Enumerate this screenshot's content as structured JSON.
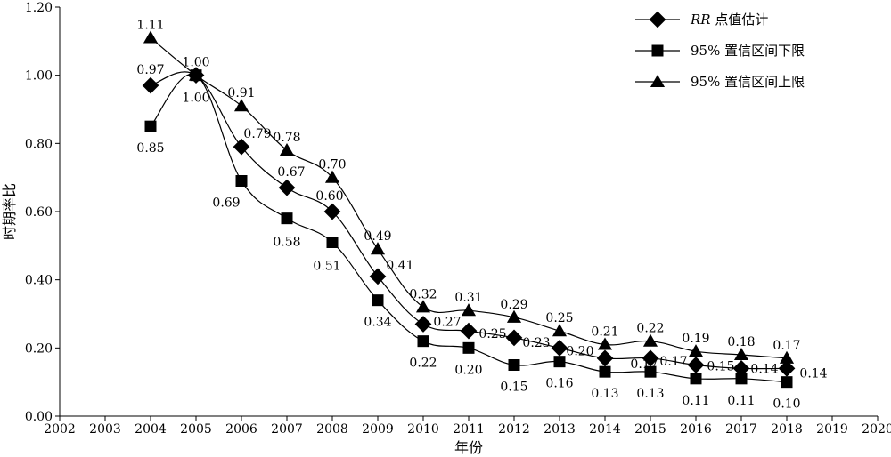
{
  "chart_data": {
    "type": "line",
    "xlabel": "年份",
    "ylabel": "时期率比",
    "xlim": [
      2002,
      2020
    ],
    "ylim": [
      0,
      1.2
    ],
    "x_ticks": [
      "2002",
      "2003",
      "2004",
      "2005",
      "2006",
      "2007",
      "2008",
      "2009",
      "2010",
      "2011",
      "2012",
      "2013",
      "2014",
      "2015",
      "2016",
      "2017",
      "2018",
      "2019",
      "2020"
    ],
    "y_ticks": [
      "0.00",
      "0.20",
      "0.40",
      "0.60",
      "0.80",
      "1.00",
      "1.20"
    ],
    "legend_position": "top-right",
    "grid": false,
    "series": [
      {
        "name_italic": "RR",
        "name_rest": " 点值估计",
        "marker": "diamond",
        "x": [
          2004,
          2005,
          2006,
          2007,
          2008,
          2009,
          2010,
          2011,
          2012,
          2013,
          2014,
          2015,
          2016,
          2017,
          2018
        ],
        "values": [
          0.97,
          1.0,
          0.79,
          0.67,
          0.6,
          0.41,
          0.27,
          0.25,
          0.23,
          0.2,
          0.17,
          0.17,
          0.15,
          0.14,
          0.14
        ],
        "labels": [
          "0.97",
          "",
          "",
          "0.67",
          "0.60",
          "0.41",
          "0.27",
          "0.25",
          "0.23",
          "0.20",
          "",
          "0.17",
          "0.15",
          "0.14",
          "0.14"
        ]
      },
      {
        "name": "95% 置信区间下限",
        "marker": "square",
        "x": [
          2004,
          2005,
          2006,
          2007,
          2008,
          2009,
          2010,
          2011,
          2012,
          2013,
          2014,
          2015,
          2016,
          2017,
          2018
        ],
        "values": [
          0.85,
          1.0,
          0.69,
          0.58,
          0.51,
          0.34,
          0.22,
          0.2,
          0.15,
          0.16,
          0.13,
          0.13,
          0.11,
          0.11,
          0.1
        ],
        "labels": [
          "0.85",
          "1.00",
          "0.69",
          "0.58",
          "0.51",
          "0.34",
          "0.22",
          "0.20",
          "0.15",
          "0.16",
          "0.13",
          "0.13",
          "0.11",
          "0.11",
          "0.10"
        ]
      },
      {
        "name": "95% 置信区间上限",
        "marker": "triangle",
        "x": [
          2004,
          2005,
          2006,
          2007,
          2008,
          2009,
          2010,
          2011,
          2012,
          2013,
          2014,
          2015,
          2016,
          2017,
          2018
        ],
        "values": [
          1.11,
          1.0,
          0.91,
          0.78,
          0.7,
          0.49,
          0.32,
          0.31,
          0.29,
          0.25,
          0.21,
          0.22,
          0.19,
          0.18,
          0.17
        ],
        "labels": [
          "1.11",
          "1.00",
          "0.91",
          "0.78",
          "0.70",
          "0.49",
          "0.32",
          "0.31",
          "0.29",
          "0.25",
          "0.21",
          "0.22",
          "0.19",
          "0.18",
          "0.17"
        ]
      }
    ],
    "extra_labels": [
      {
        "series": 0,
        "index": 2,
        "text": "0.79"
      },
      {
        "series": 0,
        "index": 10,
        "text": "0.17"
      }
    ]
  }
}
